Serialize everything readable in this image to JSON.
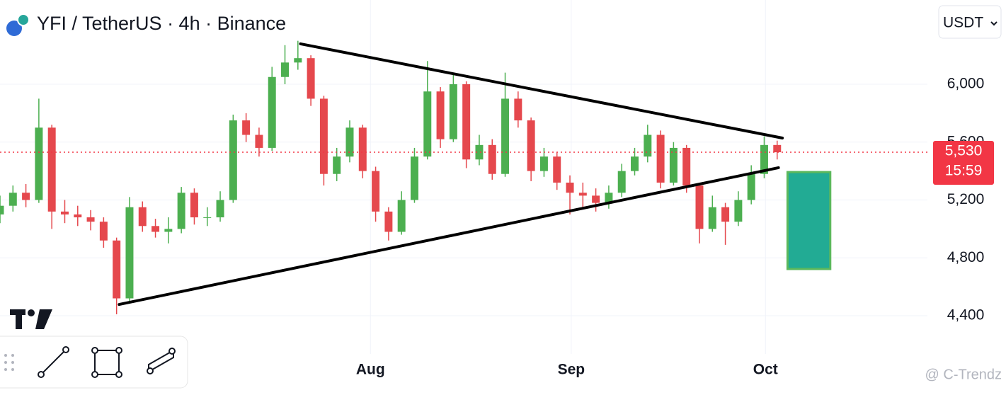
{
  "chart_data": {
    "type": "candlestick",
    "title": "YFI / TetherUS · 4h · Binance",
    "currency": "USDT",
    "watermark": "@ C-Trendz",
    "x": [
      0,
      1,
      2,
      3,
      4,
      5,
      6,
      7,
      8,
      9,
      10,
      11,
      12,
      13,
      14,
      15,
      16,
      17,
      18,
      19,
      20,
      21,
      22,
      23,
      24,
      25,
      26,
      27,
      28,
      29,
      30,
      31,
      32,
      33,
      34,
      35,
      36,
      37,
      38,
      39,
      40,
      41,
      42,
      43,
      44,
      45,
      46,
      47,
      48,
      49,
      50,
      51,
      52,
      53,
      54,
      55,
      56,
      57,
      58,
      59,
      60
    ],
    "open": [
      5100,
      5160,
      5250,
      5200,
      5700,
      5120,
      5100,
      5080,
      5050,
      4920,
      4520,
      5150,
      5020,
      4980,
      5000,
      5250,
      5080,
      5080,
      5200,
      5750,
      5650,
      5560,
      6050,
      6150,
      6180,
      5900,
      5380,
      5500,
      5700,
      5400,
      5120,
      4980,
      5200,
      5500,
      5950,
      5620,
      6000,
      5480,
      5580,
      5380,
      5900,
      5750,
      5400,
      5500,
      5320,
      5250,
      5230,
      5180,
      5250,
      5400,
      5500,
      5650,
      5320,
      5560,
      5300,
      5000,
      5150,
      5050,
      5200,
      5380,
      5580
    ],
    "high": [
      5230,
      5300,
      5310,
      5900,
      5720,
      5200,
      5160,
      5130,
      5080,
      4940,
      5220,
      5190,
      5070,
      5080,
      5290,
      5280,
      5150,
      5260,
      5790,
      5800,
      5700,
      6120,
      6270,
      6300,
      6200,
      5920,
      5560,
      5750,
      5720,
      5430,
      5150,
      5260,
      5560,
      6160,
      5980,
      6080,
      6020,
      5650,
      5620,
      6080,
      5950,
      5770,
      5560,
      5530,
      5370,
      5320,
      5280,
      5300,
      5450,
      5560,
      5720,
      5680,
      5600,
      5580,
      5320,
      5230,
      5180,
      5260,
      5440,
      5640,
      5610
    ],
    "low": [
      5040,
      5120,
      5150,
      5180,
      5000,
      5040,
      5020,
      4990,
      4870,
      4410,
      4500,
      4980,
      4940,
      4900,
      4970,
      5030,
      5020,
      5050,
      5180,
      5600,
      5500,
      5540,
      6000,
      6100,
      5850,
      5300,
      5330,
      5460,
      5350,
      5050,
      4920,
      4960,
      5180,
      5480,
      5560,
      5600,
      5420,
      5440,
      5340,
      5360,
      5700,
      5330,
      5360,
      5270,
      5100,
      5150,
      5120,
      5140,
      5220,
      5370,
      5460,
      5280,
      5300,
      5250,
      4900,
      4980,
      4890,
      5020,
      5170,
      5350,
      5480
    ],
    "close": [
      5160,
      5250,
      5200,
      5700,
      5120,
      5100,
      5080,
      5050,
      4920,
      4520,
      5150,
      5020,
      4980,
      5000,
      5250,
      5080,
      5080,
      5200,
      5750,
      5650,
      5560,
      6050,
      6150,
      6180,
      5900,
      5380,
      5500,
      5700,
      5400,
      5120,
      4980,
      5200,
      5500,
      5950,
      5620,
      6000,
      5480,
      5580,
      5380,
      5900,
      5750,
      5400,
      5500,
      5320,
      5250,
      5230,
      5180,
      5250,
      5400,
      5500,
      5650,
      5320,
      5560,
      5300,
      5000,
      5150,
      5050,
      5200,
      5380,
      5580,
      5530
    ],
    "up_color": "#4caf50",
    "down_color": "#e5484d",
    "xlim": [
      0,
      71.6
    ],
    "xticks": [
      {
        "value": 28.6,
        "label": "Aug"
      },
      {
        "value": 44.1,
        "label": "Sep"
      },
      {
        "value": 59.1,
        "label": "Oct"
      }
    ],
    "ylim": [
      4136,
      6582
    ],
    "yticks": [
      {
        "value": 4400,
        "label": "4,400"
      },
      {
        "value": 4800,
        "label": "4,800"
      },
      {
        "value": 5200,
        "label": "5,200"
      },
      {
        "value": 5600,
        "label": "5,600"
      },
      {
        "value": 6000,
        "label": "6,000"
      }
    ],
    "grid": true,
    "last_price": {
      "value": 5530,
      "label": "5,530",
      "countdown": "15:59",
      "color": "#f23645"
    },
    "trendlines": [
      {
        "x": [
          23.2,
          60.4
        ],
        "y": [
          6279,
          5628
        ]
      },
      {
        "x": [
          9.2,
          60.1
        ],
        "y": [
          4478,
          5423
        ]
      }
    ],
    "box": {
      "x": [
        60.8,
        64.1
      ],
      "y": [
        4723,
        5393
      ],
      "color": "#22ab94",
      "border": "#5cb85c"
    }
  }
}
